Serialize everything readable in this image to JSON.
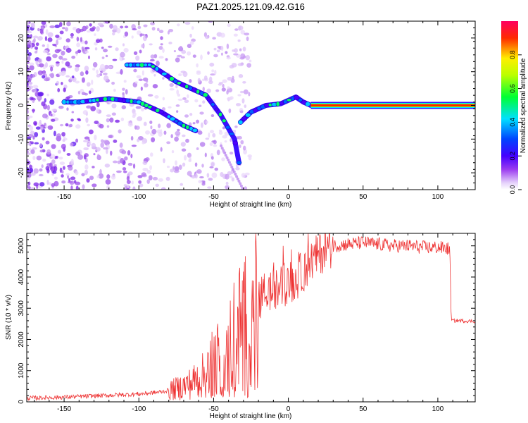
{
  "page_title": "PAZ1.2025.121.09.42.G16",
  "chart_data": [
    {
      "type": "heatmap",
      "xlabel": "Height of straight line (km)",
      "ylabel": "Frequency (Hz)",
      "xlim": [
        -175,
        125
      ],
      "ylim": [
        -25,
        25
      ],
      "x_ticks": [
        -150,
        -100,
        -50,
        0,
        50,
        100
      ],
      "y_ticks": [
        -20,
        -10,
        0,
        10,
        20
      ],
      "colorbar": {
        "label": "Normalized spectral amplitude",
        "range": [
          0,
          1
        ],
        "ticks": [
          "0.0",
          "0.2",
          "0.4",
          "0.6",
          "0.8"
        ]
      },
      "tracks": [
        {
          "x": [
            -150,
            -140,
            -120,
            -100,
            -85,
            -70,
            -62
          ],
          "y": [
            1,
            1,
            2,
            1,
            -2,
            -6,
            -7.5
          ]
        },
        {
          "x": [
            -108,
            -92,
            -75,
            -55,
            -45,
            -36,
            -33
          ],
          "y": [
            12,
            12,
            7,
            3,
            -3,
            -10,
            -17
          ]
        },
        {
          "x": [
            -32,
            -25,
            -15,
            -5,
            5,
            10,
            15
          ],
          "y": [
            -5,
            -2,
            0,
            0.5,
            2.5,
            1,
            0
          ]
        },
        {
          "x": [
            15,
            50,
            90,
            125
          ],
          "y": [
            0,
            0,
            0,
            0
          ]
        }
      ]
    },
    {
      "type": "line",
      "xlabel": "Height of straight line (km)",
      "ylabel": "SNR (10 * v/v)",
      "xlim": [
        -175,
        125
      ],
      "ylim": [
        0,
        5400
      ],
      "x_ticks": [
        -150,
        -100,
        -50,
        0,
        50,
        100
      ],
      "y_ticks": [
        0,
        1000,
        2000,
        3000,
        4000,
        5000
      ],
      "color": "#ee3333",
      "series": [
        {
          "x": [
            -175,
            -150,
            -125,
            -100,
            -85,
            -75,
            -65,
            -55,
            -50,
            -45,
            -40,
            -35,
            -30,
            -25,
            -20,
            -15,
            -10,
            -5,
            0,
            5,
            10,
            15,
            20,
            25,
            30,
            40,
            50,
            60,
            70,
            80,
            90,
            100,
            108,
            109,
            115,
            125
          ],
          "values": [
            120,
            150,
            200,
            250,
            320,
            420,
            600,
            900,
            1300,
            1500,
            1800,
            2200,
            2600,
            2900,
            3200,
            3600,
            3500,
            3700,
            3800,
            3900,
            4200,
            4500,
            4700,
            4900,
            5000,
            5050,
            5100,
            5050,
            5000,
            5000,
            4950,
            4950,
            4900,
            2600,
            2600,
            2580
          ]
        }
      ]
    }
  ]
}
